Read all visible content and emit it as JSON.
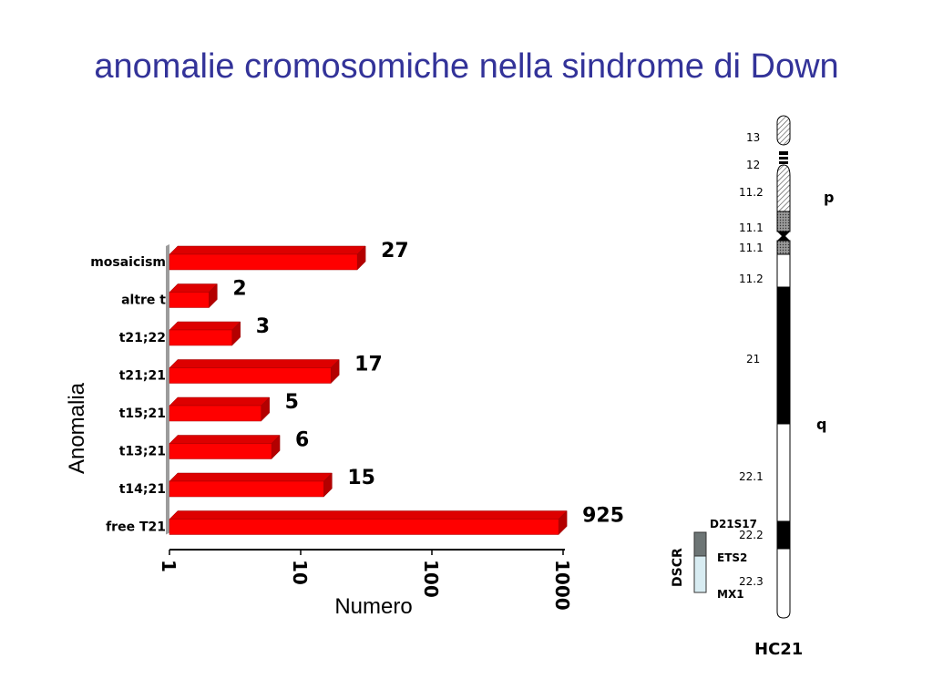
{
  "slide": {
    "title": "anomalie cromosomiche nella sindrome di Down"
  },
  "chart_data": {
    "type": "bar",
    "orientation": "horizontal",
    "scale": "log",
    "categories": [
      "mosaicism",
      "altre t",
      "t21;22",
      "t21;21",
      "t15;21",
      "t13;21",
      "t14;21",
      "free T21"
    ],
    "values": [
      27,
      2,
      3,
      17,
      5,
      6,
      15,
      925
    ],
    "xlabel": "Numero",
    "ylabel": "Anomalia",
    "xticks": [
      "1",
      "10",
      "100",
      "1000"
    ],
    "xlim": [
      1,
      1000
    ],
    "bar_color": "#ff0000",
    "bar_shade_color": "#b30000"
  },
  "ideogram": {
    "name": "HC21",
    "arm_p": "p",
    "arm_q": "q",
    "bands": [
      "13",
      "12",
      "11.2",
      "11.1",
      "11.1",
      "11.2",
      "21",
      "22.1",
      "22.2",
      "22.3"
    ],
    "dscr_label": "DSCR",
    "dscr_markers": [
      "D21S17",
      "ETS2",
      "MX1"
    ],
    "dark_band_color": "#000000"
  }
}
